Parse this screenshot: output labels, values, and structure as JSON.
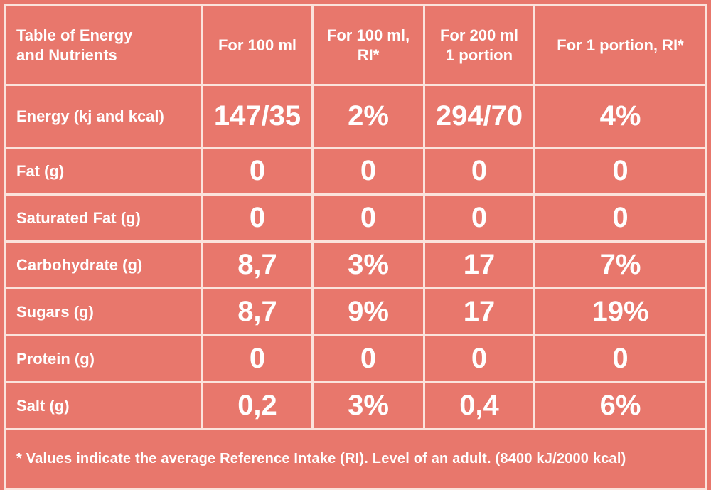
{
  "table": {
    "headers": [
      "Table of Energy and Nutrients",
      "For 100 ml",
      "For 100 ml, RI*",
      "For 200 ml 1 portion",
      "For 1 portion, RI*"
    ],
    "header_lines": [
      [
        "Table of Energy",
        "and Nutrients"
      ],
      [
        "For 100 ml",
        ""
      ],
      [
        "For 100 ml,",
        "RI*"
      ],
      [
        "For 200 ml",
        "1 portion"
      ],
      [
        "For 1 portion, RI*",
        ""
      ]
    ],
    "rows": [
      {
        "label": "Energy (kj and kcal)",
        "values": [
          "147/35",
          "2%",
          "294/70",
          "4%"
        ]
      },
      {
        "label": "Fat (g)",
        "values": [
          "0",
          "0",
          "0",
          "0"
        ]
      },
      {
        "label": "Saturated Fat (g)",
        "values": [
          "0",
          "0",
          "0",
          "0"
        ]
      },
      {
        "label": "Carbohydrate (g)",
        "values": [
          "8,7",
          "3%",
          "17",
          "7%"
        ]
      },
      {
        "label": "Sugars (g)",
        "values": [
          "8,7",
          "9%",
          "17",
          "19%"
        ]
      },
      {
        "label": "Protein (g)",
        "values": [
          "0",
          "0",
          "0",
          "0"
        ]
      },
      {
        "label": "Salt (g)",
        "values": [
          "0,2",
          "3%",
          "0,4",
          "6%"
        ]
      }
    ],
    "footnote": "* Values indicate the average Reference Intake (RI). Level of an adult. (8400 kJ/2000 kcal)"
  },
  "colors": {
    "background": "#e8776c",
    "lines": "#fbe3dc",
    "text": "#ffffff"
  }
}
